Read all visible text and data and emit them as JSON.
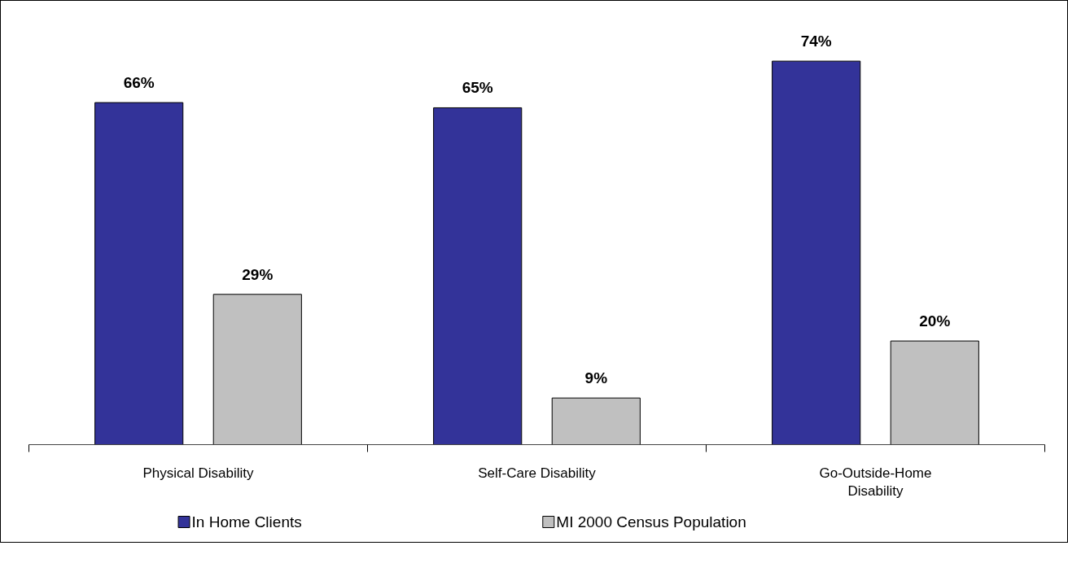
{
  "chart_data": {
    "type": "bar",
    "categories": [
      "Physical Disability",
      "Self-Care Disability",
      "Go-Outside-Home Disability"
    ],
    "series": [
      {
        "name": "In Home Clients",
        "color": "#333399",
        "values": [
          66,
          65,
          74
        ],
        "value_labels": [
          "66%",
          "65%",
          "74%"
        ]
      },
      {
        "name": "MI 2000 Census Population",
        "color": "#c0c0c0",
        "values": [
          29,
          9,
          20
        ],
        "value_labels": [
          "29%",
          "9%",
          "20%"
        ]
      }
    ],
    "legend": "bottom"
  }
}
